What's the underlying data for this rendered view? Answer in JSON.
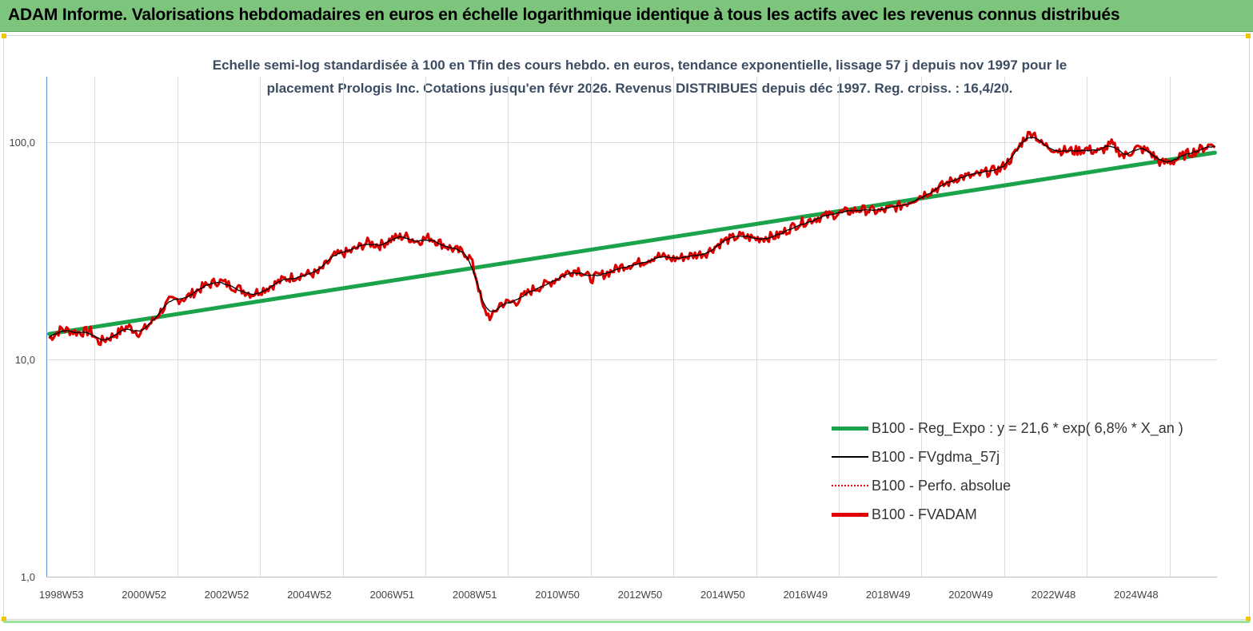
{
  "header": {
    "title": "ADAM Informe. Valorisations hebdomadaires en euros en échelle logarithmique identique à tous les actifs avec les revenus connus distribués"
  },
  "chart_data": {
    "type": "line",
    "title_line1": "Echelle semi-log standardisée à 100 en Tfin des cours hebdo. en euros, tendance exponentielle, lissage 57 j depuis nov 1997 pour le",
    "title_line2": "placement Prologis Inc. Cotations jusqu'en févr 2026. Revenus DISTRIBUES depuis déc 1997. Reg. croiss. : 16,4/20.",
    "y_scale": "log",
    "ylim": [
      1,
      200
    ],
    "y_ticks": [
      {
        "value": 1,
        "label": "1,0"
      },
      {
        "value": 10,
        "label": "10,0"
      },
      {
        "value": 100,
        "label": "100,0"
      }
    ],
    "xlim": [
      1997.87,
      2026.15
    ],
    "x_ticks": [
      {
        "value": 1998.0,
        "label": "1998W53"
      },
      {
        "value": 2000.0,
        "label": "2000W52"
      },
      {
        "value": 2002.0,
        "label": "2002W52"
      },
      {
        "value": 2004.0,
        "label": "2004W52"
      },
      {
        "value": 2006.0,
        "label": "2006W51"
      },
      {
        "value": 2008.0,
        "label": "2008W51"
      },
      {
        "value": 2010.0,
        "label": "2010W50"
      },
      {
        "value": 2012.0,
        "label": "2012W50"
      },
      {
        "value": 2014.0,
        "label": "2014W50"
      },
      {
        "value": 2016.0,
        "label": "2016W49"
      },
      {
        "value": 2018.0,
        "label": "2018W49"
      },
      {
        "value": 2020.0,
        "label": "2020W49"
      },
      {
        "value": 2022.0,
        "label": "2022W48"
      },
      {
        "value": 2024.0,
        "label": "2024W48"
      }
    ],
    "grid": "vertical",
    "legend_position": "bottom-right",
    "series": [
      {
        "name": "B100 - Reg_Expo : y = 21,6 *  exp( 6,8% *   X_an )",
        "color": "#1aa34a",
        "style": "solid-thick",
        "x": [
          1997.9,
          2026.1
        ],
        "values": [
          13.1,
          89.5
        ]
      },
      {
        "name": "B100 - FVgdma_57j",
        "color": "#000000",
        "style": "solid-thin",
        "points_from": "fvadam_smoothed"
      },
      {
        "name": "B100 - Perfo. absolue",
        "color": "#e00000",
        "style": "dotted"
      },
      {
        "name": "B100 - FVADAM",
        "color": "#e00000",
        "style": "solid-thick",
        "x": [
          1997.9,
          1998.2,
          1998.6,
          1998.9,
          1999.1,
          1999.5,
          1999.8,
          2000.1,
          2000.4,
          2000.8,
          2001.2,
          2001.6,
          2002.0,
          2002.4,
          2002.8,
          2003.2,
          2003.6,
          2004.0,
          2004.4,
          2004.8,
          2005.2,
          2005.6,
          2005.9,
          2006.2,
          2006.5,
          2006.8,
          2007.1,
          2007.4,
          2007.7,
          2007.95,
          2008.1,
          2008.25,
          2008.4,
          2008.6,
          2008.8,
          2009.2,
          2009.6,
          2010.0,
          2010.4,
          2010.7,
          2011.0,
          2011.4,
          2011.8,
          2012.2,
          2012.6,
          2013.0,
          2013.4,
          2013.8,
          2014.2,
          2014.6,
          2015.0,
          2015.5,
          2016.0,
          2016.5,
          2017.0,
          2017.5,
          2018.0,
          2018.5,
          2019.0,
          2019.5,
          2019.9,
          2020.3,
          2020.6,
          2020.9,
          2021.2,
          2021.5,
          2021.7,
          2021.9,
          2022.3,
          2022.7,
          2023.0,
          2023.3,
          2023.6,
          2023.9,
          2024.2,
          2024.5,
          2024.8,
          2025.1,
          2025.4,
          2025.7,
          2026.1
        ],
        "values": [
          12.5,
          13.8,
          13.3,
          13.5,
          12.0,
          13.0,
          14.2,
          13.2,
          15.0,
          18.5,
          19.2,
          21.5,
          23.0,
          21.5,
          20.0,
          21.5,
          23.5,
          24.5,
          25.0,
          30.0,
          31.5,
          34.5,
          33.5,
          36.0,
          37.0,
          35.0,
          36.5,
          34.0,
          32.0,
          31.0,
          29.0,
          23.0,
          17.0,
          15.5,
          18.0,
          18.5,
          21.0,
          22.5,
          25.0,
          26.0,
          23.5,
          25.0,
          27.0,
          28.0,
          30.0,
          29.0,
          30.0,
          31.0,
          35.0,
          37.0,
          36.0,
          37.0,
          42.0,
          45.0,
          47.0,
          49.0,
          48.0,
          51.0,
          57.0,
          63.0,
          69.0,
          70.0,
          73.0,
          75.0,
          85.0,
          105.0,
          112.0,
          98.0,
          92.0,
          91.0,
          93.0,
          90.0,
          98.0,
          86.0,
          94.0,
          91.0,
          80.0,
          82.0,
          88.0,
          92.0,
          99.0
        ]
      }
    ]
  }
}
